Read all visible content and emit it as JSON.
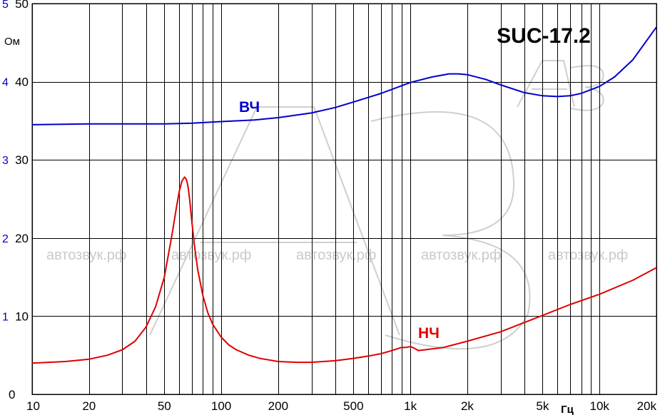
{
  "chart_data": {
    "type": "line",
    "title": "SUC-17.2",
    "xlabel": "Гц",
    "ylabel": "Ом",
    "x_scale": "log",
    "xlim": [
      10,
      20000
    ],
    "ylim": [
      0,
      50
    ],
    "y2lim": [
      0,
      5
    ],
    "grid": true,
    "x_tick_labels": [
      "10",
      "20",
      "50",
      "100",
      "200",
      "500",
      "1k",
      "2k",
      "5k",
      "10k",
      "20k"
    ],
    "x_tick_values": [
      10,
      20,
      50,
      100,
      200,
      500,
      1000,
      2000,
      5000,
      10000,
      20000
    ],
    "y_tick_labels": [
      "0",
      "10",
      "20",
      "30",
      "40",
      "50"
    ],
    "y_tick_values": [
      0,
      10,
      20,
      30,
      40,
      50
    ],
    "y2_tick_labels": [
      "1",
      "2",
      "3",
      "4",
      "5"
    ],
    "y2_tick_values": [
      1,
      2,
      3,
      4,
      5
    ],
    "watermark": "автозвук.рф",
    "series": [
      {
        "name": "ВЧ",
        "color": "#0000cc",
        "x": [
          10,
          20,
          30,
          50,
          70,
          100,
          150,
          200,
          300,
          400,
          500,
          700,
          1000,
          1300,
          1600,
          1800,
          2000,
          2500,
          3000,
          4000,
          5000,
          6000,
          7000,
          8000,
          10000,
          12000,
          15000,
          20000
        ],
        "y": [
          34.5,
          34.6,
          34.6,
          34.6,
          34.7,
          34.9,
          35.1,
          35.4,
          36.0,
          36.7,
          37.4,
          38.5,
          39.9,
          40.6,
          41.0,
          41.0,
          40.9,
          40.3,
          39.6,
          38.6,
          38.2,
          38.1,
          38.2,
          38.5,
          39.4,
          40.6,
          42.8,
          47.0
        ]
      },
      {
        "name": "НЧ",
        "color": "#e00000",
        "x": [
          10,
          15,
          20,
          25,
          30,
          35,
          40,
          45,
          50,
          55,
          58,
          60,
          62,
          64,
          65,
          66,
          67,
          68,
          70,
          72,
          75,
          80,
          85,
          90,
          100,
          110,
          120,
          140,
          160,
          200,
          250,
          300,
          400,
          500,
          600,
          700,
          800,
          900,
          950,
          1000,
          1050,
          1100,
          1200,
          1500,
          2000,
          3000,
          5000,
          7000,
          10000,
          15000,
          20000
        ],
        "y": [
          4.0,
          4.2,
          4.5,
          5.0,
          5.7,
          6.8,
          8.6,
          11.2,
          15.0,
          20.5,
          24.0,
          26.0,
          27.3,
          27.8,
          27.6,
          27.2,
          26.3,
          25.0,
          22.0,
          19.2,
          16.0,
          12.6,
          10.4,
          9.0,
          7.3,
          6.3,
          5.7,
          5.0,
          4.6,
          4.2,
          4.1,
          4.1,
          4.3,
          4.6,
          4.9,
          5.2,
          5.6,
          6.0,
          6.0,
          6.1,
          5.9,
          5.6,
          5.7,
          6.0,
          6.8,
          8.0,
          10.1,
          11.5,
          12.8,
          14.6,
          16.2
        ]
      }
    ]
  }
}
